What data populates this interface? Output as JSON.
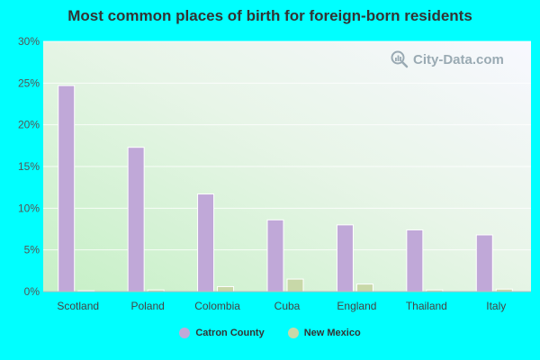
{
  "chart_data": {
    "type": "bar",
    "title": "Most common places of birth for foreign-born residents",
    "categories": [
      "Scotland",
      "Poland",
      "Colombia",
      "Cuba",
      "England",
      "Thailand",
      "Italy"
    ],
    "series": [
      {
        "name": "Catron County",
        "color": "#c0a8d8",
        "values": [
          24.7,
          17.3,
          11.7,
          8.6,
          8.0,
          7.4,
          6.8
        ]
      },
      {
        "name": "New Mexico",
        "color": "#c8d8a8",
        "values": [
          0.1,
          0.2,
          0.6,
          1.5,
          0.9,
          0.2,
          0.3
        ]
      }
    ],
    "yticks": [
      "0%",
      "5%",
      "10%",
      "15%",
      "20%",
      "25%",
      "30%"
    ],
    "ylim": [
      0,
      30
    ],
    "xlabel": "",
    "ylabel": "",
    "grid": true,
    "legend": "bottom-center"
  },
  "watermark": {
    "text": "City-Data.com",
    "icon": "magnifier-chart-icon"
  }
}
